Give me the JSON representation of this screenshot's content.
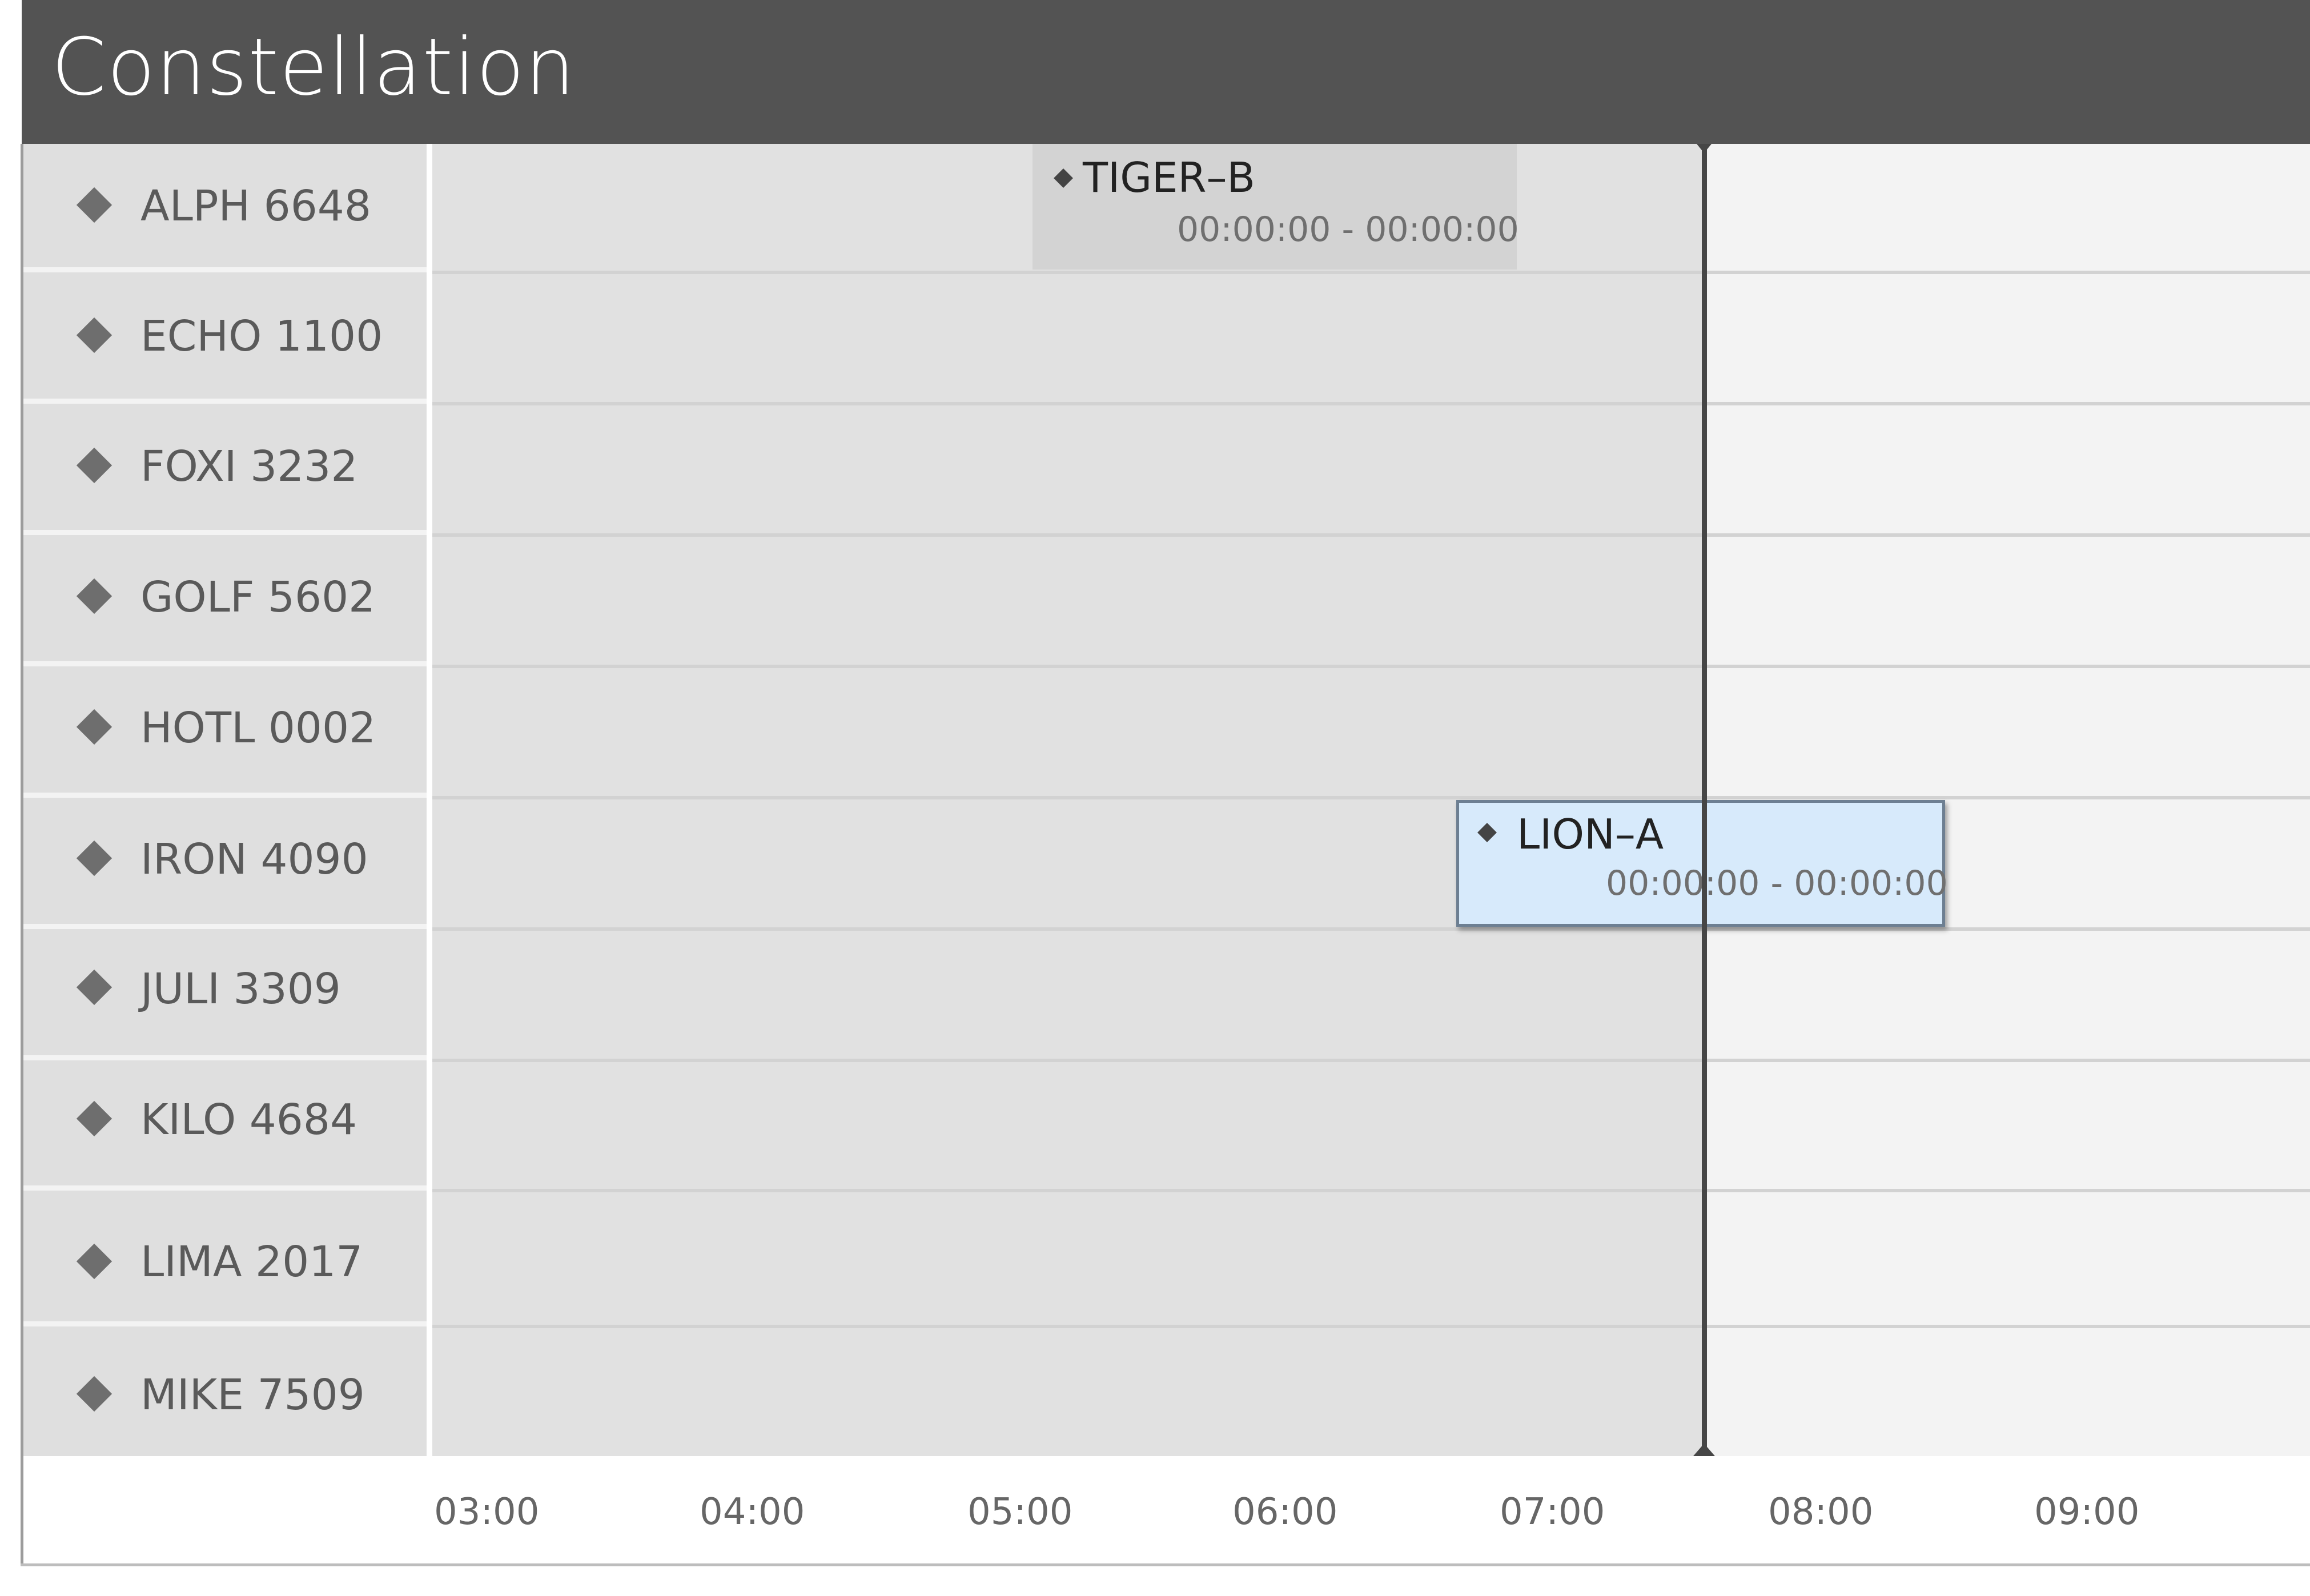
{
  "header": {
    "title": "Constellation"
  },
  "rows": [
    {
      "label": "ALPH 6648"
    },
    {
      "label": "ECHO 1100"
    },
    {
      "label": "FOXI 3232"
    },
    {
      "label": "GOLF 5602"
    },
    {
      "label": "HOTL 0002"
    },
    {
      "label": "IRON 4090"
    },
    {
      "label": "JULI 3309"
    },
    {
      "label": "KILO 4684"
    },
    {
      "label": "LIMA 2017"
    },
    {
      "label": "MIKE 7509"
    }
  ],
  "events": [
    {
      "title": "TIGER–B",
      "time": "00:00:00 - 00:00:00",
      "row": 0,
      "selected": false
    },
    {
      "title": "LION–A",
      "time": "00:00:00 - 00:00:00",
      "row": 5,
      "selected": true
    }
  ],
  "axis": {
    "ticks": [
      "03:00",
      "04:00",
      "05:00",
      "06:00",
      "07:00",
      "08:00",
      "09:00"
    ]
  },
  "colors": {
    "header": "#535353",
    "selected_event": "#d7eafb",
    "now_line": "#464646"
  }
}
